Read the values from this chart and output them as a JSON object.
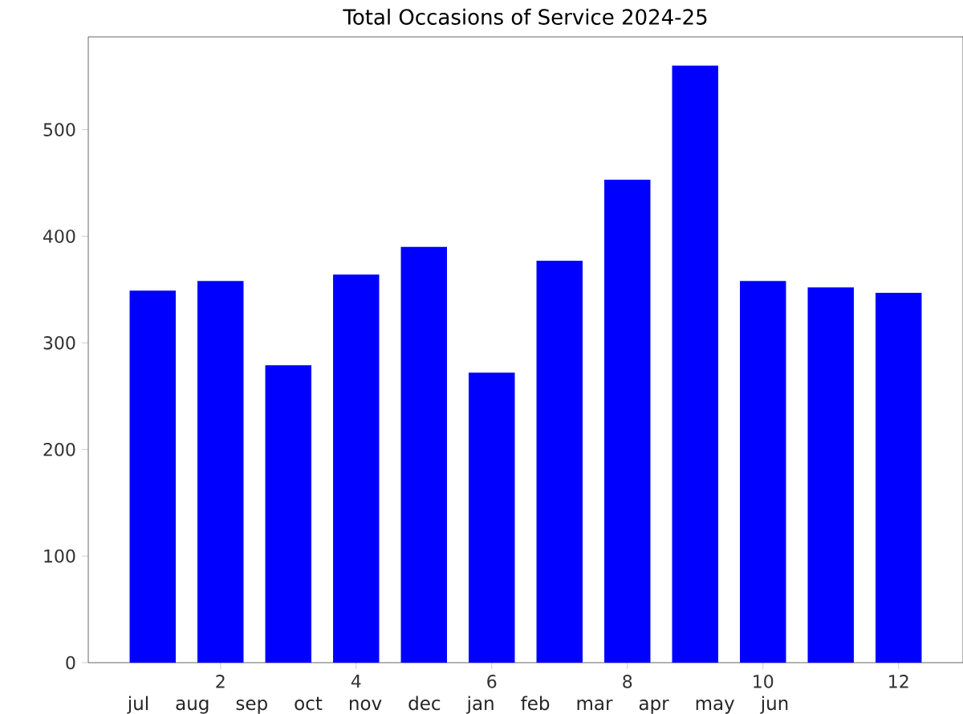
{
  "chart_data": {
    "type": "bar",
    "title": "Total Occasions of Service 2024-25",
    "xlabel": "jul  aug  sep  oct  nov  dec  jan  feb  mar  apr  may  jun",
    "x": [
      1,
      2,
      3,
      4,
      5,
      6,
      7,
      8,
      9,
      10,
      11,
      12
    ],
    "values": [
      349,
      358,
      279,
      364,
      390,
      272,
      377,
      453,
      560,
      358,
      352,
      347
    ],
    "color": "#0000ff",
    "xlim": [
      0.05,
      12.95
    ],
    "xticks": [
      2,
      4,
      6,
      8,
      10,
      12
    ],
    "ylim": [
      0,
      587
    ],
    "yticks": [
      0,
      100,
      200,
      300,
      400,
      500
    ]
  }
}
